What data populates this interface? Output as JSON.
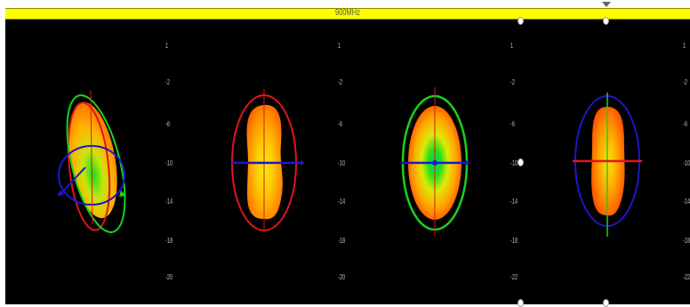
{
  "header": {
    "frequency_label": "900MHz"
  },
  "colors": {
    "title_bar": "#ffff00",
    "background": "#000000",
    "ring_red": "#e0141e",
    "ring_green": "#18d21c",
    "ring_blue": "#1c18c8"
  },
  "panels": [
    {
      "tick_labels": [
        "1",
        "-2",
        "-6",
        "-10",
        "-14",
        "-18",
        "-20"
      ]
    },
    {
      "tick_labels": [
        "1",
        "-2",
        "-6",
        "-10",
        "-14",
        "-18",
        "-20"
      ]
    },
    {
      "tick_labels": [
        "1",
        "-2",
        "-6",
        "-10",
        "-14",
        "-18",
        "-22"
      ]
    },
    {
      "tick_labels": [
        "1",
        "-2",
        "-6",
        "-10",
        "-14",
        "-18",
        "-22"
      ]
    }
  ]
}
